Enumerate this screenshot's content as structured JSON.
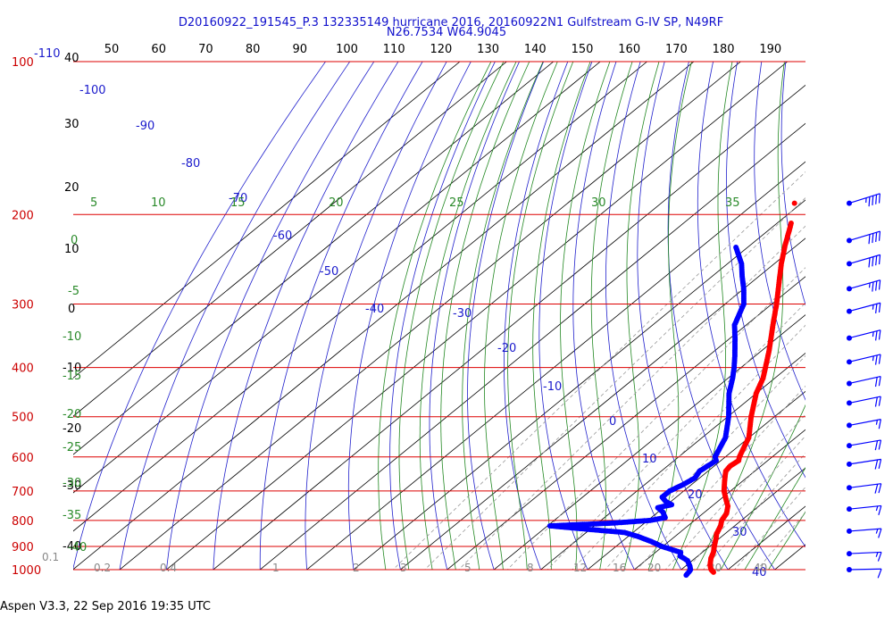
{
  "header": {
    "title_line1": "D20160922_191545_P.3 132335149 hurricane 2016, 20160922N1 Gulfstream G-IV SP, N49RF",
    "title_line2": "N26.7534 W64.9045"
  },
  "footer": {
    "text": "Aspen V3.3, 22 Sep 2016  19:35 UTC"
  },
  "colors": {
    "isobar": "#dd0000",
    "isotherm": "#000000",
    "dry_adiabat": "#2020cc",
    "moist_adiabat": "#228822",
    "mixing_ratio": "#999999",
    "temperature_trace": "#ff0000",
    "dewpoint_trace": "#0000ff",
    "wind_barb": "#0000ff"
  },
  "chart_data": {
    "type": "skew-t",
    "pressure_axis": {
      "unit": "hPa",
      "scale": "log",
      "range": [
        1000,
        100
      ],
      "labels": [
        "100",
        "200",
        "300",
        "400",
        "500",
        "600",
        "700",
        "800",
        "900",
        "1000"
      ]
    },
    "top_scale_labels": [
      "50",
      "60",
      "70",
      "80",
      "90",
      "100",
      "110",
      "120",
      "130",
      "140",
      "150",
      "160",
      "170",
      "180",
      "190"
    ],
    "left_temperature_labels": [
      "40",
      "30",
      "20",
      "10",
      "0",
      "-10",
      "-20",
      "-30",
      "-40"
    ],
    "dry_adiabat_labels": [
      "-110",
      "-100",
      "-90",
      "-80",
      "-70",
      "-60",
      "-50",
      "-40",
      "-30",
      "-20",
      "-10",
      "0",
      "10",
      "20",
      "30",
      "40"
    ],
    "moist_adiabat_labels": [
      "5",
      "10",
      "15",
      "20",
      "25",
      "30",
      "35",
      "0",
      "-5",
      "-10",
      "-15",
      "-20",
      "-25",
      "-30",
      "-35",
      "-40"
    ],
    "mixing_ratio_labels": [
      "0.1",
      "0.2",
      "0.4",
      "1",
      "2",
      "3",
      "5",
      "8",
      "12",
      "16",
      "20",
      "30",
      "40"
    ],
    "temperature_profile": {
      "name": "Temperature",
      "points": [
        {
          "p": 1012,
          "t": 27.6
        },
        {
          "p": 1000,
          "t": 26.4
        },
        {
          "p": 980,
          "t": 25.0
        },
        {
          "p": 950,
          "t": 23.4
        },
        {
          "p": 925,
          "t": 22.4
        },
        {
          "p": 900,
          "t": 21.0
        },
        {
          "p": 870,
          "t": 19.4
        },
        {
          "p": 850,
          "t": 18.2
        },
        {
          "p": 820,
          "t": 17.0
        },
        {
          "p": 800,
          "t": 15.8
        },
        {
          "p": 775,
          "t": 15.0
        },
        {
          "p": 750,
          "t": 13.4
        },
        {
          "p": 725,
          "t": 11.0
        },
        {
          "p": 700,
          "t": 8.6
        },
        {
          "p": 675,
          "t": 6.6
        },
        {
          "p": 660,
          "t": 5.4
        },
        {
          "p": 640,
          "t": 3.8
        },
        {
          "p": 625,
          "t": 3.4
        },
        {
          "p": 610,
          "t": 3.8
        },
        {
          "p": 600,
          "t": 3.0
        },
        {
          "p": 570,
          "t": 1.2
        },
        {
          "p": 550,
          "t": 0.0
        },
        {
          "p": 500,
          "t": -5.0
        },
        {
          "p": 450,
          "t": -10.0
        },
        {
          "p": 420,
          "t": -12.5
        },
        {
          "p": 400,
          "t": -14.8
        },
        {
          "p": 370,
          "t": -18.5
        },
        {
          "p": 350,
          "t": -21.3
        },
        {
          "p": 330,
          "t": -24.3
        },
        {
          "p": 300,
          "t": -29.0
        },
        {
          "p": 270,
          "t": -34.5
        },
        {
          "p": 250,
          "t": -38.5
        },
        {
          "p": 230,
          "t": -42.5
        },
        {
          "p": 215,
          "t": -45.5
        },
        {
          "p": 208,
          "t": -47.0
        }
      ]
    },
    "dewpoint_profile": {
      "name": "Dewpoint",
      "points": [
        {
          "p": 1025,
          "t": 22.5
        },
        {
          "p": 1012,
          "t": 22.3
        },
        {
          "p": 1000,
          "t": 22.0
        },
        {
          "p": 985,
          "t": 21.0
        },
        {
          "p": 960,
          "t": 19.0
        },
        {
          "p": 940,
          "t": 16.2
        },
        {
          "p": 925,
          "t": 15.4
        },
        {
          "p": 900,
          "t": 9.8
        },
        {
          "p": 880,
          "t": 6.2
        },
        {
          "p": 860,
          "t": 2.0
        },
        {
          "p": 845,
          "t": -1.8
        },
        {
          "p": 835,
          "t": -9.0
        },
        {
          "p": 825,
          "t": -16.0
        },
        {
          "p": 820,
          "t": -19.5
        },
        {
          "p": 810,
          "t": -7.0
        },
        {
          "p": 800,
          "t": 0.5
        },
        {
          "p": 790,
          "t": 3.0
        },
        {
          "p": 770,
          "t": 1.0
        },
        {
          "p": 755,
          "t": -1.2
        },
        {
          "p": 745,
          "t": 1.0
        },
        {
          "p": 735,
          "t": -1.0
        },
        {
          "p": 720,
          "t": -3.0
        },
        {
          "p": 700,
          "t": -3.0
        },
        {
          "p": 680,
          "t": -1.8
        },
        {
          "p": 660,
          "t": -1.0
        },
        {
          "p": 640,
          "t": -1.8
        },
        {
          "p": 610,
          "t": -1.0
        },
        {
          "p": 600,
          "t": -2.2
        },
        {
          "p": 550,
          "t": -5.0
        },
        {
          "p": 500,
          "t": -9.8
        },
        {
          "p": 450,
          "t": -15.8
        },
        {
          "p": 420,
          "t": -19.0
        },
        {
          "p": 400,
          "t": -21.5
        },
        {
          "p": 380,
          "t": -24.3
        },
        {
          "p": 350,
          "t": -29.0
        },
        {
          "p": 330,
          "t": -32.5
        },
        {
          "p": 300,
          "t": -36.0
        },
        {
          "p": 280,
          "t": -40.0
        },
        {
          "p": 265,
          "t": -43.5
        },
        {
          "p": 250,
          "t": -47.0
        },
        {
          "p": 240,
          "t": -50.0
        },
        {
          "p": 232,
          "t": -52.5
        }
      ]
    },
    "isolated_temperature_point": {
      "p": 190,
      "t": -51.5
    },
    "wind_barbs": [
      {
        "p": 190,
        "speed_kt": 45
      },
      {
        "p": 225,
        "speed_kt": 40
      },
      {
        "p": 250,
        "speed_kt": 40
      },
      {
        "p": 280,
        "speed_kt": 35
      },
      {
        "p": 310,
        "speed_kt": 25
      },
      {
        "p": 350,
        "speed_kt": 25
      },
      {
        "p": 390,
        "speed_kt": 25
      },
      {
        "p": 430,
        "speed_kt": 20
      },
      {
        "p": 470,
        "speed_kt": 20
      },
      {
        "p": 520,
        "speed_kt": 15
      },
      {
        "p": 570,
        "speed_kt": 20
      },
      {
        "p": 620,
        "speed_kt": 20
      },
      {
        "p": 690,
        "speed_kt": 20
      },
      {
        "p": 760,
        "speed_kt": 15
      },
      {
        "p": 840,
        "speed_kt": 15
      },
      {
        "p": 930,
        "speed_kt": 15
      },
      {
        "p": 1000,
        "speed_kt": 10
      }
    ],
    "grid": true,
    "legend": "none"
  }
}
